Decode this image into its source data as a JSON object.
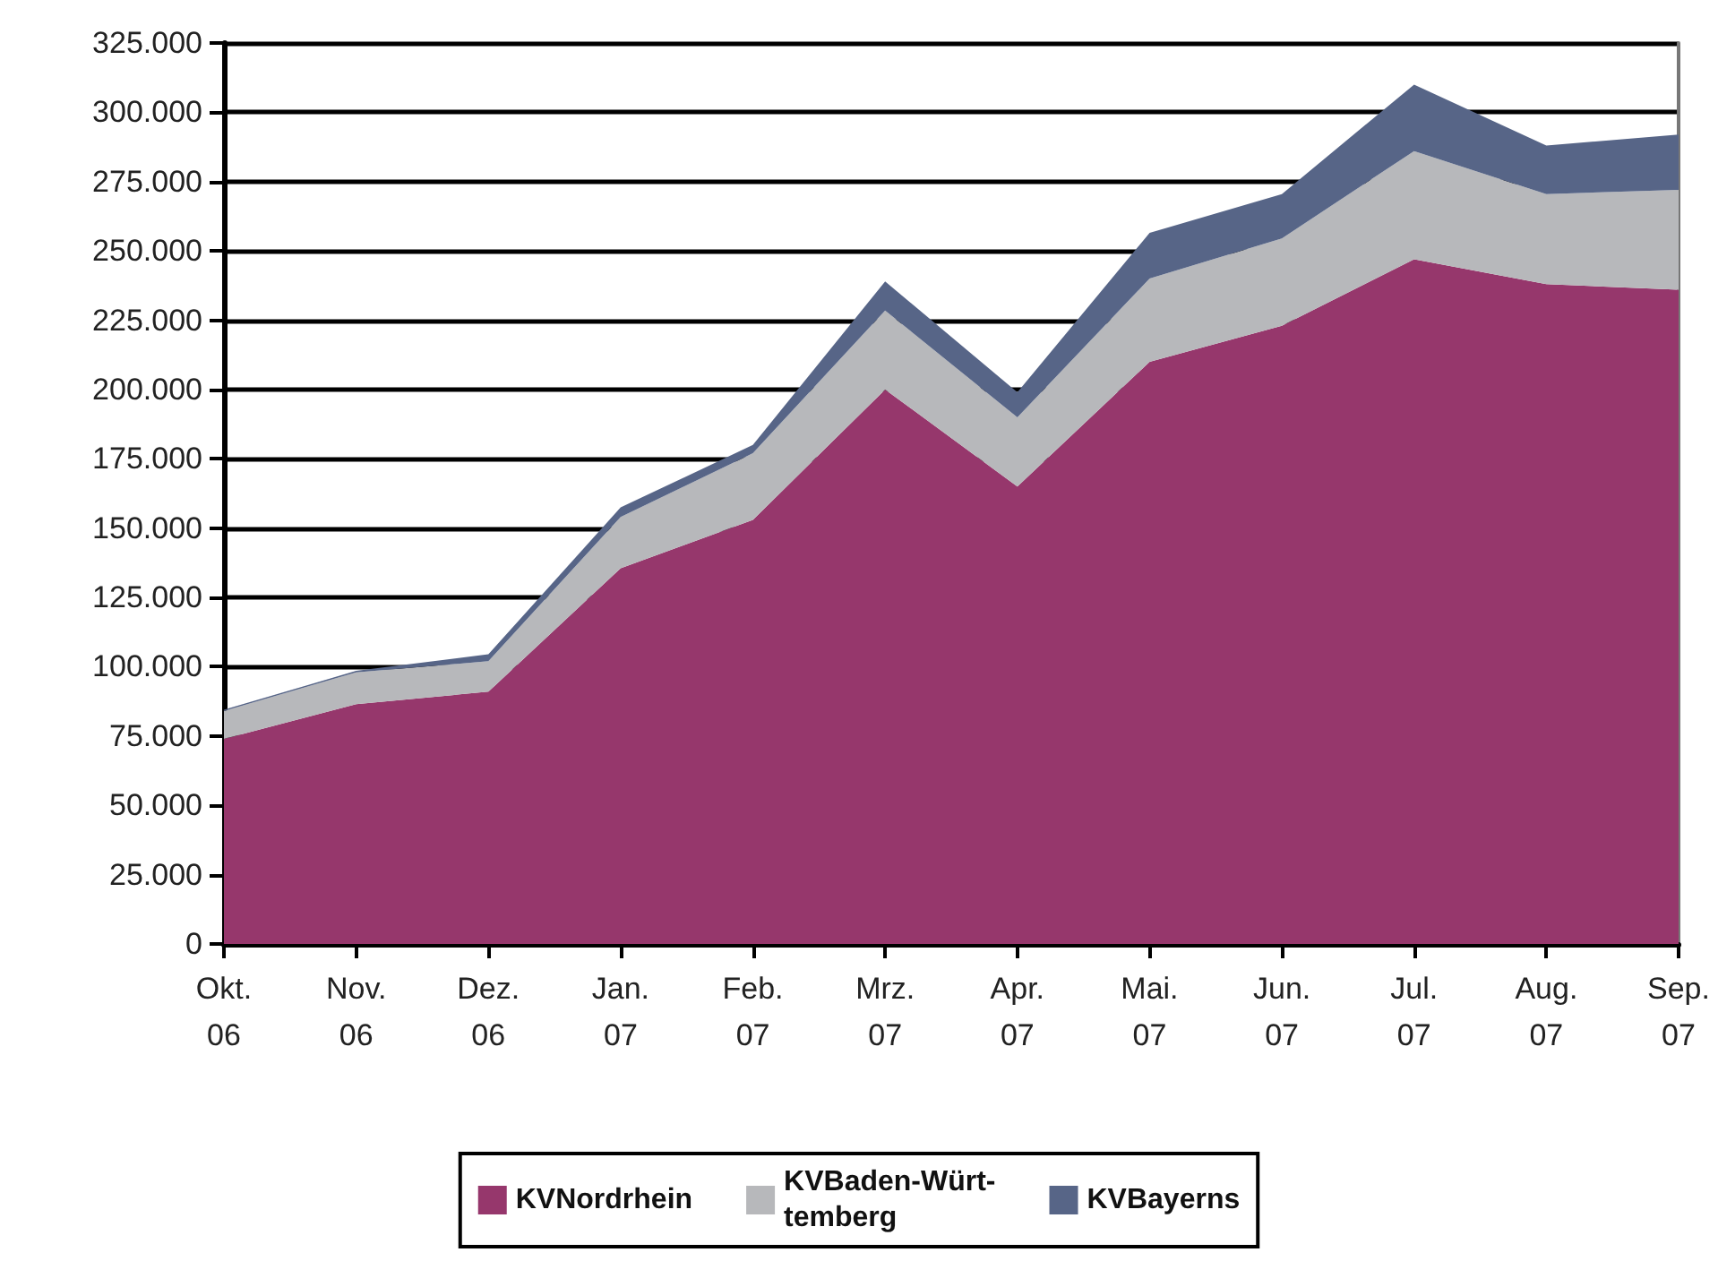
{
  "chart_data": {
    "type": "area",
    "stacked": true,
    "categories": [
      "Okt.\n06",
      "Nov.\n06",
      "Dez.\n06",
      "Jan.\n07",
      "Feb.\n07",
      "Mrz.\n07",
      "Apr.\n07",
      "Mai.\n07",
      "Jun.\n07",
      "Jul.\n07",
      "Aug.\n07",
      "Sep.\n07"
    ],
    "series": [
      {
        "name": "KVNordrhein",
        "color": "#96376c",
        "values": [
          74000,
          86500,
          91000,
          135500,
          153000,
          200000,
          165000,
          210000,
          223000,
          247000,
          238000,
          236000
        ]
      },
      {
        "name": "KVBaden-Würt-\ntemberg",
        "color": "#b7b8bb",
        "values": [
          10000,
          11500,
          11000,
          18500,
          24000,
          28500,
          25000,
          30000,
          31500,
          39000,
          32500,
          36000
        ]
      },
      {
        "name": "KVBayerns",
        "color": "#576587",
        "values": [
          500,
          500,
          2500,
          3500,
          3000,
          10500,
          9000,
          16500,
          16000,
          24000,
          17500,
          20000
        ]
      }
    ],
    "ylim": [
      0,
      325000
    ],
    "yticks": [
      {
        "value": 0,
        "label": "0"
      },
      {
        "value": 25000,
        "label": "25.000"
      },
      {
        "value": 50000,
        "label": "50.000"
      },
      {
        "value": 75000,
        "label": "75.000"
      },
      {
        "value": 100000,
        "label": "100.000"
      },
      {
        "value": 125000,
        "label": "125.000"
      },
      {
        "value": 150000,
        "label": "150.000"
      },
      {
        "value": 175000,
        "label": "175.000"
      },
      {
        "value": 200000,
        "label": "200.000"
      },
      {
        "value": 225000,
        "label": "225.000"
      },
      {
        "value": 250000,
        "label": "250.000"
      },
      {
        "value": 275000,
        "label": "275.000"
      },
      {
        "value": 300000,
        "label": "300.000"
      },
      {
        "value": 325000,
        "label": "325.000"
      }
    ],
    "grid": "y",
    "legend": "bottom"
  }
}
